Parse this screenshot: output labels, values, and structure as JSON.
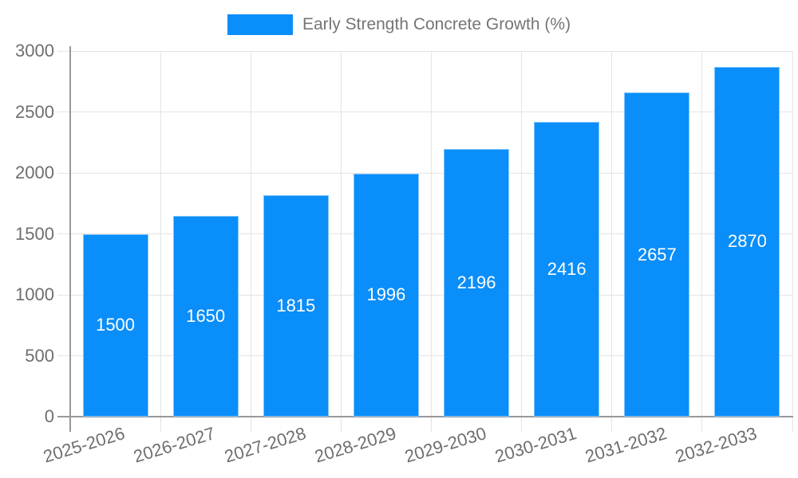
{
  "chart": {
    "background": "#ffffff",
    "colors": {
      "bar": "#0a8ef9",
      "grid": "#e4e4e4",
      "axis": "#999999",
      "tick_label": "#6e6e6e",
      "value_label": "#ffffff",
      "legend_text": "#757575"
    }
  },
  "chart_data": {
    "type": "bar",
    "title": "Early Strength Concrete Growth (%)",
    "legend": [
      "Early Strength Concrete Growth (%)"
    ],
    "legend_position": "top-center",
    "categories": [
      "2025-2026",
      "2026-2027",
      "2027-2028",
      "2028-2029",
      "2029-2030",
      "2030-2031",
      "2031-2032",
      "2032-2033"
    ],
    "values": [
      1500,
      1650,
      1815,
      1996,
      2196,
      2416,
      2657,
      2870
    ],
    "xlabel": "",
    "ylabel": "",
    "ylim": [
      0,
      3000
    ],
    "yticks": [
      0,
      500,
      1000,
      1500,
      2000,
      2500,
      3000
    ],
    "grid": true,
    "bar_value_labels": "white, centered inside each bar",
    "x_label_rotation_deg": -17
  }
}
